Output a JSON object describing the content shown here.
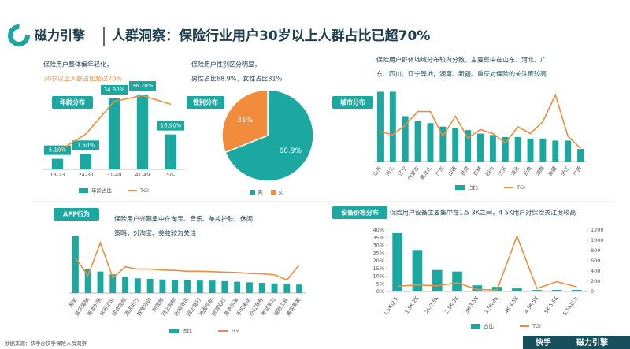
{
  "header": {
    "logo": "磁力引擎",
    "title": "人群洞察：保险行业用户30岁以上人群占比已超70%"
  },
  "footer": {
    "source": "数据来源：快手@快手保险人群洞察",
    "brand": [
      "快手",
      "磁力引擎"
    ]
  },
  "chart_data": [
    {
      "type": "bar-line",
      "label": "年龄分布",
      "description": [
        "保险用户整体偏年轻化，",
        "30岁以上人群占比超过70%"
      ],
      "categories": [
        "18-23",
        "24-30",
        "31-40",
        "41-49",
        "50-"
      ],
      "series": [
        {
          "name": "年龄占比",
          "color": "#1aa8a0",
          "values": [
            5.1,
            7.5,
            34.3,
            36.2,
            16.9
          ],
          "value_labels": [
            "5.10%",
            "7.50%",
            "34.30%",
            "36.20%",
            "16.90%"
          ]
        },
        {
          "name": "TGI",
          "color": "#f08c3c",
          "axis": "y2",
          "values": [
            30,
            60,
            115,
            125,
            110
          ]
        }
      ],
      "ylim": [
        0,
        40
      ],
      "y2lim": [
        0,
        140
      ]
    },
    {
      "type": "pie",
      "label": "性别分布",
      "description": [
        "保险用户性别区分明显，",
        "男性占比68.9%，女性占比31%"
      ],
      "categories": [
        "男",
        "女"
      ],
      "values": [
        68.9,
        31
      ],
      "value_labels": [
        "68.9%",
        "31%"
      ],
      "colors": [
        "#1aa8a0",
        "#f08c3c"
      ]
    },
    {
      "type": "bar-line",
      "label": "城市分布",
      "description": [
        "保险用户群体地域分布较为分散，主要集中在山东、河北、广",
        "东、四川、辽宁等地；湖南、新疆、重庆对保险的关注度较高"
      ],
      "categories": [
        "山东",
        "河北",
        "辽宁",
        "内蒙古",
        "黑龙江",
        "广东",
        "山西",
        "甘肃",
        "吉林",
        "四川",
        "江苏",
        "湖北",
        "云南",
        "湖南",
        "新疆",
        "浙江",
        "广西"
      ],
      "series": [
        {
          "name": "占比",
          "color": "#1aa8a0",
          "values": [
            100,
            100,
            65,
            58,
            55,
            50,
            48,
            45,
            40,
            38,
            35,
            35,
            33,
            33,
            30,
            30,
            18
          ]
        },
        {
          "name": "TGI",
          "color": "#f08c3c",
          "axis": "y2",
          "values": [
            45,
            40,
            55,
            75,
            75,
            38,
            68,
            35,
            48,
            42,
            28,
            52,
            42,
            60,
            100,
            38,
            20
          ]
        }
      ],
      "ylim": [
        0,
        105
      ],
      "y2lim": [
        0,
        110
      ]
    },
    {
      "type": "bar-line",
      "label": "APP行为",
      "description": [
        "保险用户兴趣集中在淘宝、音乐、美妆护肤、休闲",
        "策略，对淘宝、美妆较为关注"
      ],
      "categories": [
        "淘宝",
        "音乐播放",
        "美妆护肤",
        "休闲评论",
        "综合视频",
        "酒店出行",
        "教育培训",
        "短视频",
        "网上购物",
        "新闻资讯",
        "网上银行",
        "地图导航",
        "旅游出行",
        "角色扮演",
        "手机美化",
        "办公商务",
        "考试学习",
        "辅助工具",
        "美容美发"
      ],
      "series": [
        {
          "name": "占比",
          "color": "#1aa8a0",
          "values": [
            100,
            42,
            38,
            33,
            28,
            26,
            25,
            24,
            23,
            23,
            22,
            22,
            21,
            20,
            19,
            18,
            17,
            16,
            15
          ]
        },
        {
          "name": "TGI",
          "color": "#f08c3c",
          "axis": "y2",
          "values": [
            80,
            40,
            115,
            35,
            60,
            55,
            55,
            53,
            52,
            50,
            50,
            49,
            48,
            47,
            45,
            44,
            42,
            30,
            65
          ]
        }
      ],
      "ylim": [
        0,
        100
      ],
      "y2lim": [
        0,
        130
      ]
    },
    {
      "type": "bar-line",
      "label": "设备价格分布",
      "description": [
        "保险用户设备主要集中在1.5-3K之间，4-5K用户对保险关注度较高"
      ],
      "categories": [
        "1.5K以下",
        "1.5K-2K",
        "2K-2.5K",
        "2.5K-3K",
        "3K-3.5K",
        "3.5K-4K",
        "4K-4.5K",
        "4.5K-5K",
        "5K-5.5K",
        "5.5K以上"
      ],
      "series": [
        {
          "name": "占比",
          "color": "#1aa8a0",
          "values": [
            38,
            27,
            14,
            13,
            4,
            3,
            2,
            1,
            1,
            1
          ]
        },
        {
          "name": "TGI",
          "color": "#f08c3c",
          "axis": "y2",
          "values": [
            100,
            130,
            110,
            170,
            40,
            30,
            1080,
            60,
            190,
            90
          ]
        }
      ],
      "ylim": [
        0,
        40
      ],
      "yticks": [
        {
          "value": 0,
          "label": "0%"
        },
        {
          "value": 5,
          "label": "5%"
        },
        {
          "value": 10,
          "label": "10%"
        },
        {
          "value": 15,
          "label": "15%"
        },
        {
          "value": 20,
          "label": "20%"
        },
        {
          "value": 25,
          "label": "25%"
        },
        {
          "value": 30,
          "label": "30%"
        },
        {
          "value": 35,
          "label": "35%"
        },
        {
          "value": 40,
          "label": "40%"
        }
      ],
      "y2lim": [
        0,
        1200
      ],
      "y2ticks": [
        0,
        200,
        400,
        600,
        800,
        1000,
        1200
      ]
    }
  ]
}
